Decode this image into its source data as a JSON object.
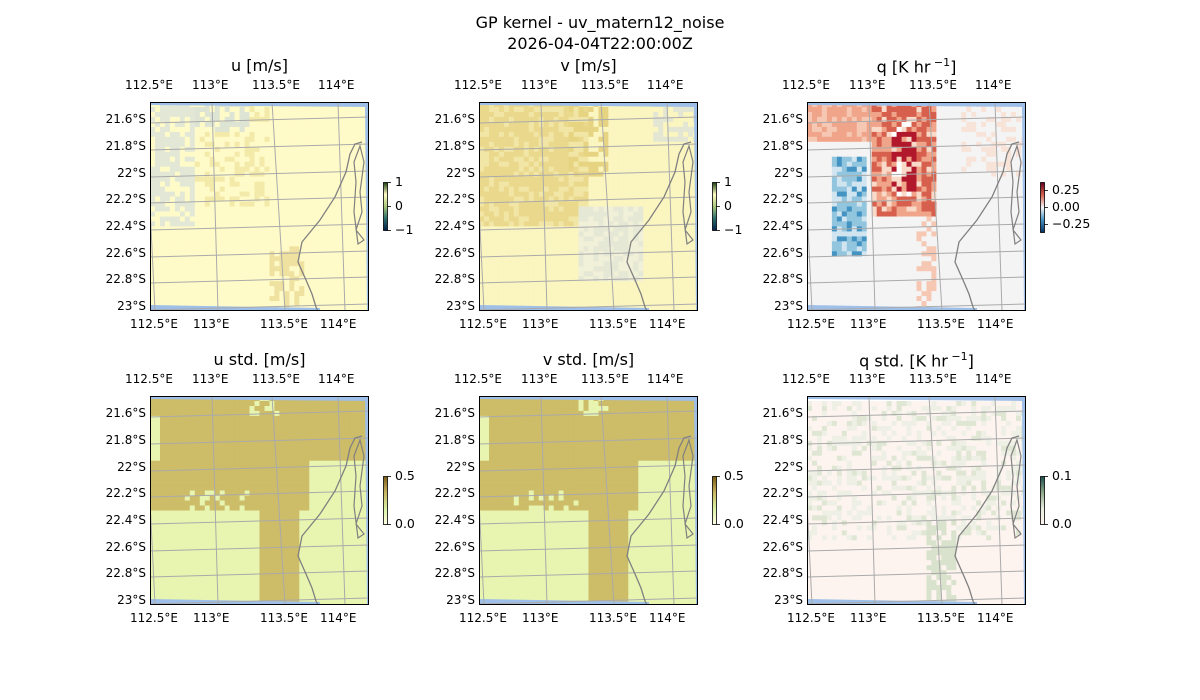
{
  "figure": {
    "title": "GP kernel - uv_matern12_noise",
    "subtitle": "2026-04-04T22:00:00Z"
  },
  "lon_ticks": [
    "112.5°E",
    "113°E",
    "113.5°E",
    "114°E"
  ],
  "lat_ticks": [
    "21.6°S",
    "21.8°S",
    "22°S",
    "22.2°S",
    "22.4°S",
    "22.6°S",
    "22.8°S",
    "23°S"
  ],
  "panels": [
    {
      "title": "u [m/s]",
      "sup": "",
      "cbar_ticks": [
        "1",
        "0",
        "−1"
      ],
      "cmap": [
        "#00204c",
        "#2c6e6a",
        "#a9c77b",
        "#fffcc4",
        "#1a3d0e"
      ]
    },
    {
      "title": "v [m/s]",
      "sup": "",
      "cbar_ticks": [
        "1",
        "0",
        "−1"
      ],
      "cmap": [
        "#00204c",
        "#2c6e6a",
        "#a9c77b",
        "#fffcc4",
        "#1a3d0e"
      ]
    },
    {
      "title": "q [K hr",
      "sup": "−1",
      "title_end": "]",
      "cbar_ticks": [
        "0.25",
        "0.00",
        "−0.25"
      ],
      "cmap": [
        "#053061",
        "#4393c3",
        "#f7f7f7",
        "#d6604d",
        "#67001f"
      ]
    },
    {
      "title": "u std. [m/s]",
      "sup": "",
      "cbar_ticks": [
        "0.5",
        "0.0"
      ],
      "cmap": [
        "#ffffe5",
        "#d9f0a3",
        "#c8b560",
        "#7a5a12"
      ]
    },
    {
      "title": "v std. [m/s]",
      "sup": "",
      "cbar_ticks": [
        "0.5",
        "0.0"
      ],
      "cmap": [
        "#ffffe5",
        "#d9f0a3",
        "#c8b560",
        "#7a5a12"
      ]
    },
    {
      "title": "q std. [K hr",
      "sup": "−1",
      "title_end": "]",
      "cbar_ticks": [
        "0.1",
        "0.0"
      ],
      "cmap": [
        "#fff5f0",
        "#e8ece0",
        "#8fa888",
        "#1a4f4f"
      ]
    }
  ]
}
